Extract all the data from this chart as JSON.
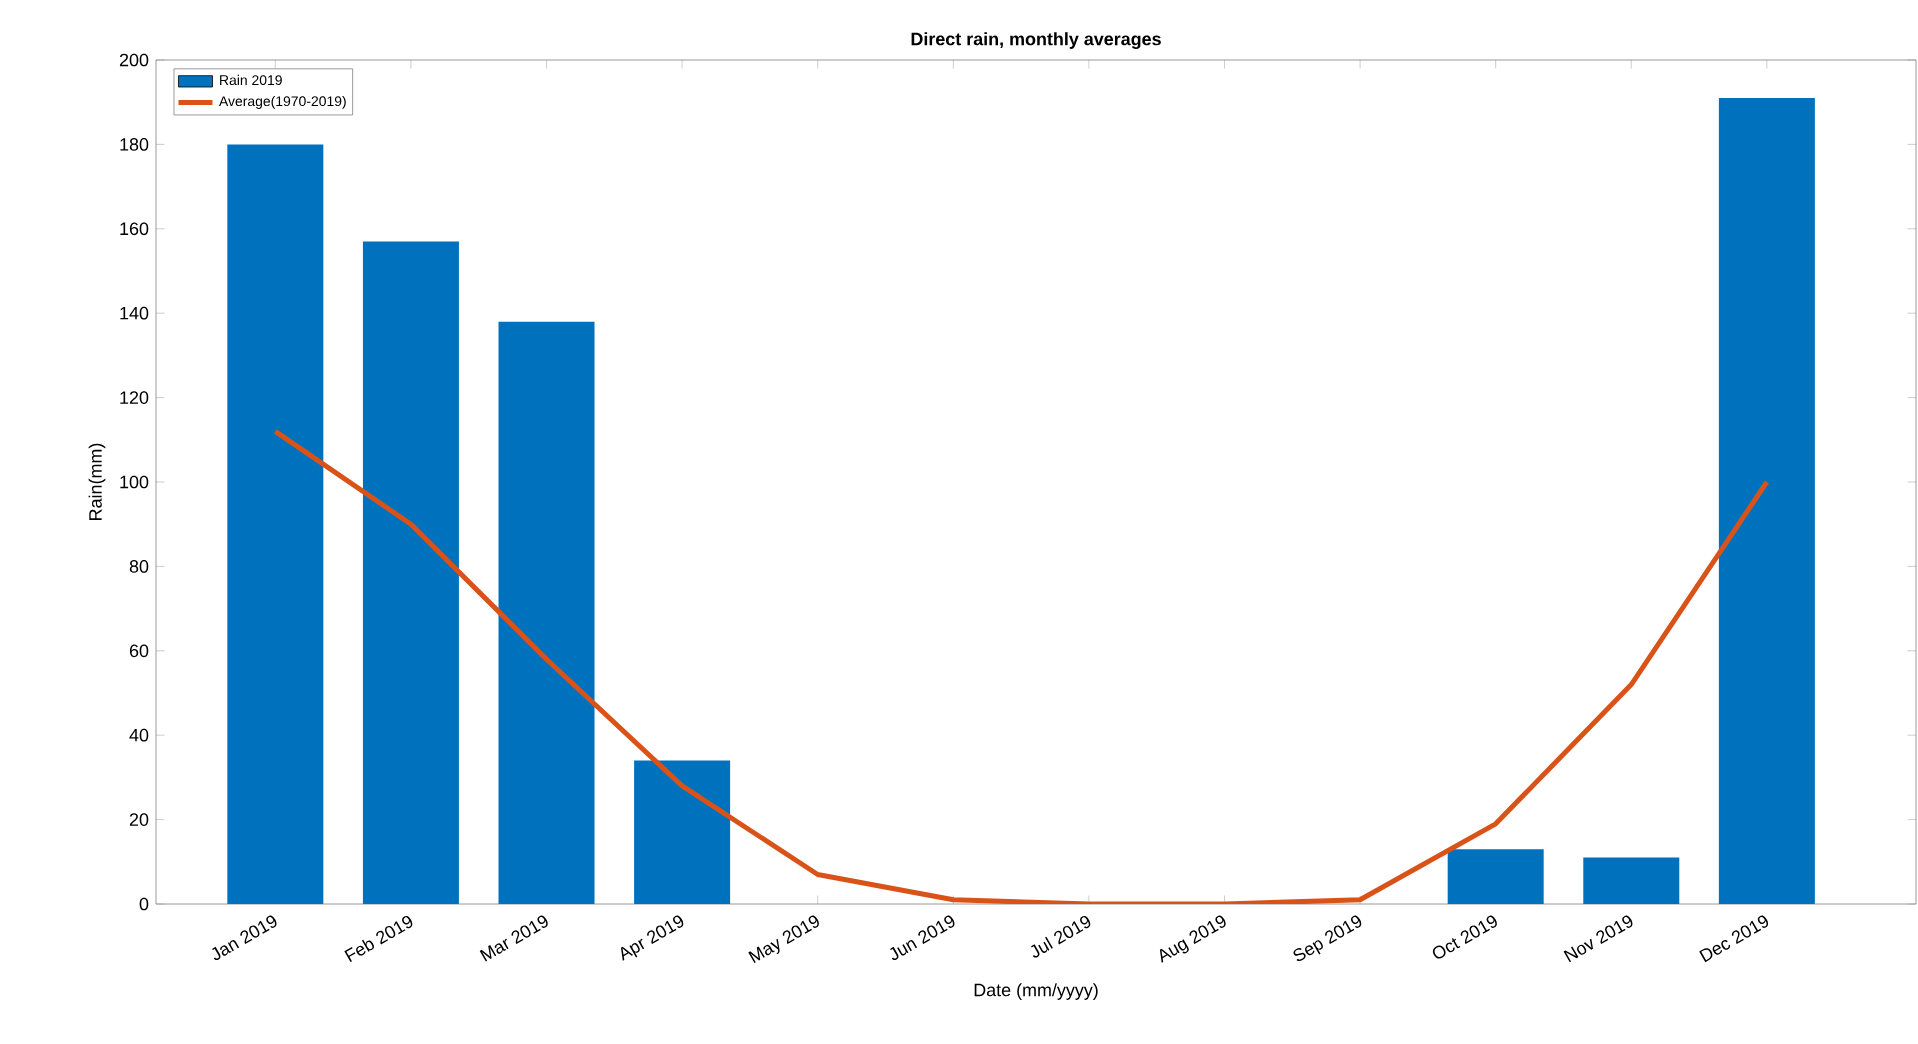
{
  "chart_data": {
    "type": "bar",
    "title": "Direct rain, monthly averages",
    "xlabel": "Date (mm/yyyy)",
    "ylabel": "Rain(mm)",
    "categories": [
      "Jan 2019",
      "Feb 2019",
      "Mar 2019",
      "Apr 2019",
      "May 2019",
      "Jun 2019",
      "Jul 2019",
      "Aug 2019",
      "Sep 2019",
      "Oct 2019",
      "Nov 2019",
      "Dec 2019"
    ],
    "series": [
      {
        "name": "Rain 2019",
        "color": "#0072bd",
        "values": [
          180,
          157,
          138,
          34,
          null,
          null,
          null,
          null,
          null,
          13,
          11,
          191
        ]
      },
      {
        "name": "Average(1970-2019)",
        "type": "line",
        "color": "#d95319",
        "values": [
          112,
          90,
          58,
          28,
          7,
          1,
          0,
          0,
          1,
          19,
          52,
          100
        ]
      }
    ],
    "ylim": [
      0,
      200
    ],
    "yticks": [
      0,
      20,
      40,
      60,
      80,
      100,
      120,
      140,
      160,
      180,
      200
    ],
    "legend": "top left",
    "grid": false
  }
}
